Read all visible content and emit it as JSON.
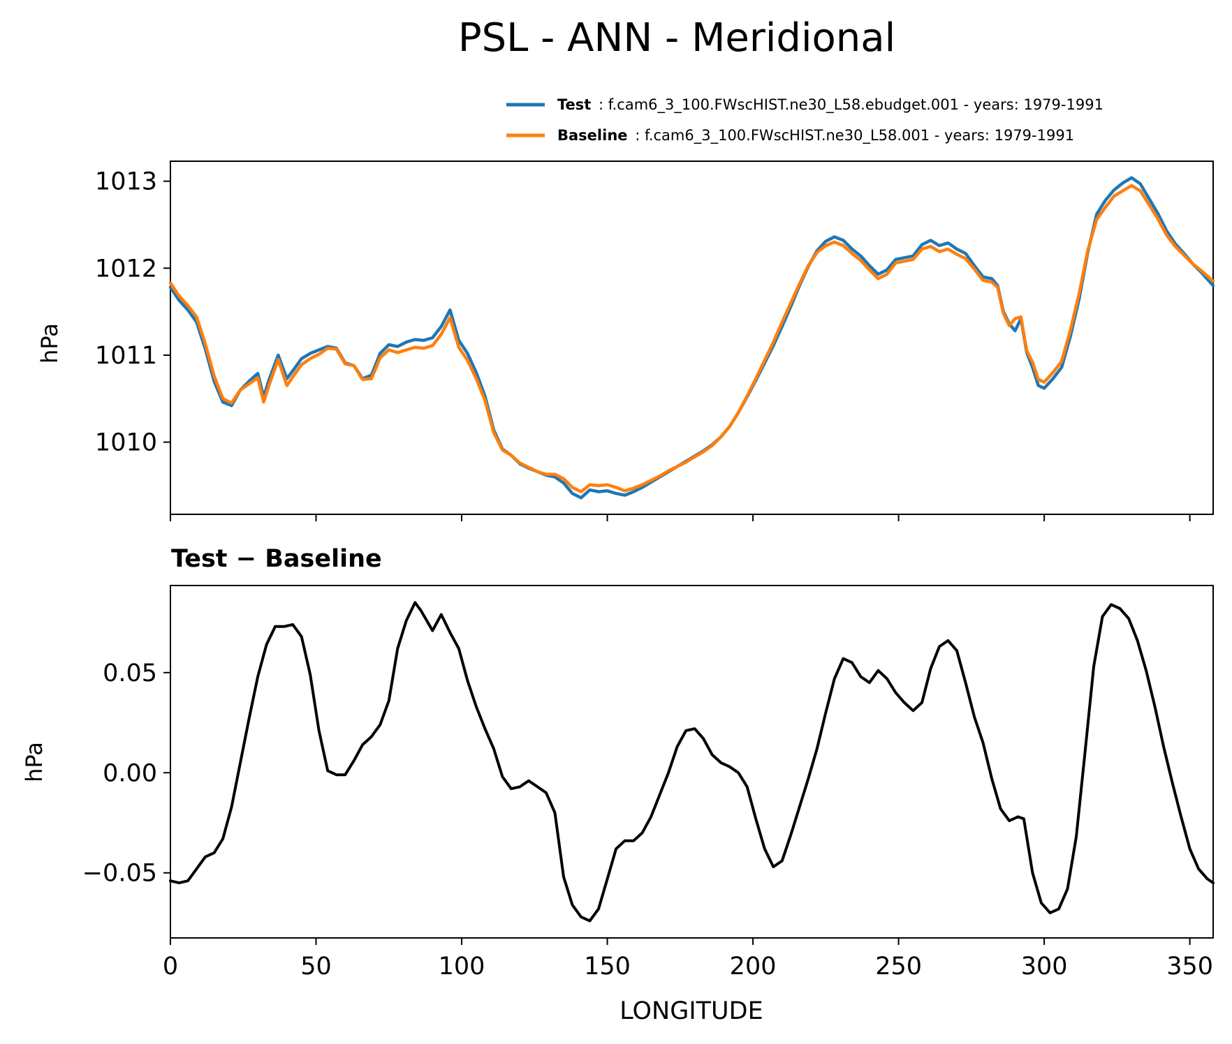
{
  "title": "PSL - ANN - Meridional",
  "legend": [
    {
      "name": "Test",
      "description": ": f.cam6_3_100.FWscHIST.ne30_L58.ebudget.001 - years: 1979-1991",
      "color": "#1f77b4"
    },
    {
      "name": "Baseline",
      "description": ": f.cam6_3_100.FWscHIST.ne30_L58.001 - years: 1979-1991",
      "color": "#ff7f0e"
    }
  ],
  "chart_data": [
    {
      "type": "line",
      "title": "",
      "ylabel": "hPa",
      "xlabel": "",
      "xlim": [
        0,
        358
      ],
      "ylim": [
        1009.17,
        1013.23
      ],
      "xticks": [
        0,
        50,
        100,
        150,
        200,
        250,
        300,
        350
      ],
      "yticks": [
        1010,
        1011,
        1012,
        1013
      ],
      "ytick_labels": [
        "1010",
        "1011",
        "1012",
        "1013"
      ],
      "legend_position": "above-right",
      "x": [
        0,
        3,
        6,
        9,
        12,
        15,
        18,
        21,
        24,
        27,
        30,
        32,
        34,
        37,
        40,
        42,
        45,
        48,
        51,
        54,
        57,
        60,
        63,
        66,
        69,
        72,
        75,
        78,
        81,
        84,
        87,
        90,
        93,
        96,
        99,
        102,
        105,
        108,
        111,
        114,
        117,
        120,
        123,
        126,
        129,
        132,
        135,
        138,
        141,
        144,
        147,
        150,
        153,
        156,
        159,
        162,
        165,
        168,
        171,
        174,
        177,
        180,
        183,
        186,
        189,
        192,
        195,
        198,
        201,
        204,
        207,
        210,
        213,
        216,
        219,
        222,
        225,
        228,
        231,
        234,
        237,
        240,
        243,
        246,
        249,
        252,
        255,
        258,
        261,
        264,
        267,
        270,
        273,
        276,
        279,
        282,
        284,
        286,
        288,
        290,
        292,
        294,
        296,
        298,
        300,
        303,
        306,
        309,
        312,
        315,
        318,
        321,
        324,
        327,
        330,
        333,
        336,
        339,
        342,
        345,
        348,
        351,
        354,
        358
      ],
      "series": [
        {
          "name": "Test",
          "color": "#1f77b4",
          "values": [
            1011.78,
            1011.63,
            1011.52,
            1011.38,
            1011.07,
            1010.7,
            1010.46,
            1010.42,
            1010.6,
            1010.7,
            1010.79,
            1010.52,
            1010.73,
            1011.0,
            1010.73,
            1010.82,
            1010.96,
            1011.02,
            1011.06,
            1011.1,
            1011.08,
            1010.91,
            1010.88,
            1010.73,
            1010.77,
            1011.02,
            1011.12,
            1011.1,
            1011.15,
            1011.18,
            1011.17,
            1011.2,
            1011.33,
            1011.52,
            1011.17,
            1011.02,
            1010.8,
            1010.53,
            1010.14,
            1009.92,
            1009.85,
            1009.75,
            1009.7,
            1009.66,
            1009.62,
            1009.6,
            1009.53,
            1009.41,
            1009.36,
            1009.45,
            1009.43,
            1009.44,
            1009.41,
            1009.39,
            1009.43,
            1009.48,
            1009.54,
            1009.6,
            1009.66,
            1009.72,
            1009.78,
            1009.84,
            1009.9,
            1009.97,
            1010.06,
            1010.18,
            1010.34,
            1010.52,
            1010.71,
            1010.91,
            1011.11,
            1011.33,
            1011.56,
            1011.8,
            1012.02,
            1012.2,
            1012.31,
            1012.36,
            1012.32,
            1012.22,
            1012.14,
            1012.03,
            1011.93,
            1011.98,
            1012.1,
            1012.12,
            1012.14,
            1012.27,
            1012.32,
            1012.26,
            1012.29,
            1012.22,
            1012.17,
            1012.03,
            1011.9,
            1011.88,
            1011.8,
            1011.5,
            1011.36,
            1011.28,
            1011.42,
            1011.03,
            1010.86,
            1010.65,
            1010.62,
            1010.73,
            1010.86,
            1011.22,
            1011.65,
            1012.19,
            1012.62,
            1012.78,
            1012.9,
            1012.98,
            1013.04,
            1012.97,
            1012.8,
            1012.63,
            1012.43,
            1012.28,
            1012.17,
            1012.05,
            1011.95,
            1011.8
          ]
        },
        {
          "name": "Baseline",
          "color": "#ff7f0e",
          "values": [
            1011.83,
            1011.68,
            1011.57,
            1011.44,
            1011.13,
            1010.76,
            1010.5,
            1010.45,
            1010.6,
            1010.67,
            1010.74,
            1010.46,
            1010.67,
            1010.95,
            1010.65,
            1010.75,
            1010.89,
            1010.96,
            1011.01,
            1011.08,
            1011.07,
            1010.9,
            1010.88,
            1010.72,
            1010.73,
            1010.97,
            1011.06,
            1011.03,
            1011.06,
            1011.09,
            1011.08,
            1011.11,
            1011.24,
            1011.43,
            1011.09,
            1010.94,
            1010.73,
            1010.48,
            1010.11,
            1009.91,
            1009.85,
            1009.76,
            1009.71,
            1009.66,
            1009.63,
            1009.63,
            1009.58,
            1009.48,
            1009.43,
            1009.51,
            1009.5,
            1009.51,
            1009.48,
            1009.44,
            1009.47,
            1009.51,
            1009.56,
            1009.61,
            1009.67,
            1009.72,
            1009.77,
            1009.83,
            1009.89,
            1009.96,
            1010.06,
            1010.18,
            1010.34,
            1010.53,
            1010.73,
            1010.94,
            1011.15,
            1011.38,
            1011.6,
            1011.82,
            1012.03,
            1012.18,
            1012.26,
            1012.3,
            1012.26,
            1012.17,
            1012.09,
            1011.98,
            1011.88,
            1011.93,
            1012.06,
            1012.08,
            1012.1,
            1012.22,
            1012.25,
            1012.19,
            1012.22,
            1012.16,
            1012.11,
            1011.99,
            1011.86,
            1011.84,
            1011.78,
            1011.48,
            1011.34,
            1011.42,
            1011.44,
            1011.05,
            1010.92,
            1010.72,
            1010.69,
            1010.8,
            1010.93,
            1011.29,
            1011.71,
            1012.21,
            1012.56,
            1012.7,
            1012.83,
            1012.89,
            1012.95,
            1012.89,
            1012.73,
            1012.57,
            1012.38,
            1012.25,
            1012.15,
            1012.05,
            1011.97,
            1011.85
          ]
        }
      ]
    },
    {
      "type": "line",
      "title": "Test − Baseline",
      "ylabel": "hPa",
      "xlabel": "LONGITUDE",
      "xlim": [
        0,
        358
      ],
      "ylim": [
        -0.0825,
        0.0935
      ],
      "xticks": [
        0,
        50,
        100,
        150,
        200,
        250,
        300,
        350
      ],
      "xtick_labels": [
        "0",
        "50",
        "100",
        "150",
        "200",
        "250",
        "300",
        "350"
      ],
      "yticks": [
        -0.05,
        0.0,
        0.05
      ],
      "ytick_labels": [
        "−0.05",
        "0.00",
        "0.05"
      ],
      "x": [
        0,
        3,
        6,
        9,
        12,
        15,
        18,
        21,
        24,
        27,
        30,
        33,
        36,
        39,
        42,
        45,
        48,
        51,
        54,
        57,
        60,
        63,
        66,
        69,
        72,
        75,
        78,
        81,
        84,
        86,
        88,
        90,
        93,
        96,
        99,
        102,
        105,
        108,
        111,
        114,
        117,
        120,
        123,
        126,
        129,
        132,
        135,
        138,
        141,
        144,
        147,
        150,
        153,
        156,
        159,
        162,
        165,
        168,
        171,
        174,
        177,
        180,
        183,
        186,
        189,
        192,
        195,
        198,
        201,
        204,
        207,
        210,
        213,
        216,
        219,
        222,
        225,
        228,
        231,
        234,
        237,
        240,
        243,
        246,
        249,
        252,
        255,
        258,
        261,
        264,
        267,
        270,
        273,
        276,
        279,
        282,
        285,
        288,
        291,
        293,
        296,
        299,
        302,
        305,
        308,
        311,
        314,
        317,
        320,
        323,
        326,
        329,
        332,
        335,
        338,
        341,
        344,
        347,
        350,
        353,
        356,
        358
      ],
      "series": [
        {
          "name": "Test − Baseline",
          "color": "#000000",
          "values": [
            -0.054,
            -0.055,
            -0.054,
            -0.048,
            -0.042,
            -0.04,
            -0.033,
            -0.017,
            0.005,
            0.027,
            0.048,
            0.064,
            0.073,
            0.073,
            0.074,
            0.068,
            0.049,
            0.021,
            0.001,
            -0.001,
            -0.001,
            0.006,
            0.014,
            0.018,
            0.024,
            0.036,
            0.062,
            0.076,
            0.085,
            0.081,
            0.076,
            0.071,
            0.079,
            0.07,
            0.062,
            0.046,
            0.033,
            0.022,
            0.012,
            -0.002,
            -0.008,
            -0.007,
            -0.004,
            -0.007,
            -0.01,
            -0.02,
            -0.052,
            -0.066,
            -0.072,
            -0.074,
            -0.068,
            -0.053,
            -0.038,
            -0.034,
            -0.034,
            -0.03,
            -0.022,
            -0.011,
            0.0,
            0.013,
            0.021,
            0.022,
            0.017,
            0.009,
            0.005,
            0.003,
            0.0,
            -0.007,
            -0.023,
            -0.038,
            -0.047,
            -0.044,
            -0.031,
            -0.017,
            -0.003,
            0.012,
            0.03,
            0.047,
            0.057,
            0.055,
            0.048,
            0.045,
            0.051,
            0.047,
            0.04,
            0.035,
            0.031,
            0.035,
            0.052,
            0.063,
            0.066,
            0.061,
            0.045,
            0.028,
            0.015,
            -0.003,
            -0.018,
            -0.024,
            -0.022,
            -0.023,
            -0.05,
            -0.065,
            -0.07,
            -0.068,
            -0.058,
            -0.032,
            0.01,
            0.053,
            0.078,
            0.084,
            0.082,
            0.077,
            0.066,
            0.051,
            0.033,
            0.013,
            -0.005,
            -0.022,
            -0.038,
            -0.048,
            -0.053,
            -0.055
          ]
        }
      ]
    }
  ]
}
